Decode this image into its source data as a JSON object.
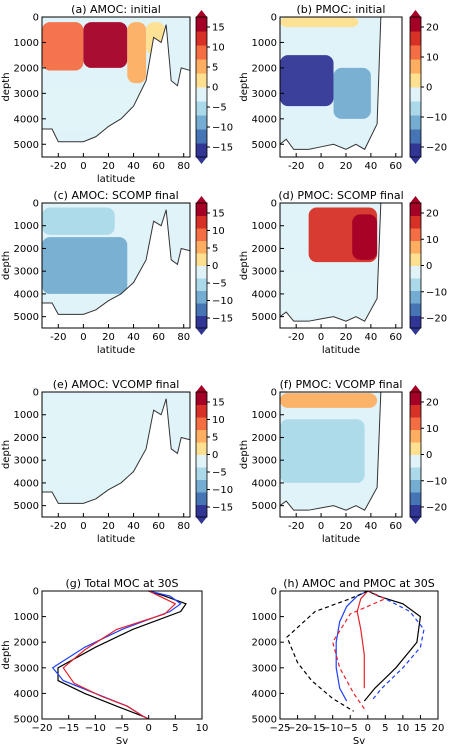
{
  "colors": {
    "scale": [
      "#313695",
      "#4575b4",
      "#74add1",
      "#abd9e9",
      "#e0f3f8",
      "#fee090",
      "#fdae61",
      "#f46d43",
      "#d73027",
      "#a50026"
    ],
    "amoc": "#000000",
    "pmoc": "#1f3fff",
    "sum_red": "#e8212a",
    "topography": "#ffffff"
  },
  "chart_data": [
    {
      "id": "a",
      "type": "heatmap",
      "title": "(a) AMOC: initial",
      "xlabel": "latitude",
      "ylabel": "depth",
      "xlim": [
        -33,
        85
      ],
      "ylim": [
        5500,
        0
      ],
      "y_inverted": true,
      "xticks": [
        "-20",
        "0",
        "20",
        "40",
        "60",
        "80"
      ],
      "yticks": [
        "0",
        "1000",
        "2000",
        "3000",
        "4000",
        "5000"
      ],
      "colorbar_ticks": [
        "15",
        "10",
        "5",
        "0",
        "−5",
        "−10",
        "−15"
      ],
      "colorbar_range": [
        -18,
        18
      ],
      "field_cells": [
        {
          "lat": [
            -33,
            0
          ],
          "depth": [
            200,
            2100
          ],
          "value": 10
        },
        {
          "lat": [
            0,
            35
          ],
          "depth": [
            200,
            2000
          ],
          "value": 15
        },
        {
          "lat": [
            35,
            50
          ],
          "depth": [
            200,
            2600
          ],
          "value": 4
        },
        {
          "lat": [
            50,
            65
          ],
          "depth": [
            200,
            1500
          ],
          "value": 2
        },
        {
          "lat": [
            -33,
            45
          ],
          "depth": [
            2800,
            4500
          ],
          "value": -3
        }
      ]
    },
    {
      "id": "b",
      "type": "heatmap",
      "title": "(b) PMOC: initial",
      "xlabel": "",
      "ylabel": "depth",
      "xlim": [
        -33,
        65
      ],
      "ylim": [
        5500,
        0
      ],
      "y_inverted": true,
      "xticks": [
        "-20",
        "0",
        "20",
        "40",
        "60"
      ],
      "yticks": [
        "0",
        "1000",
        "2000",
        "3000",
        "4000",
        "5000"
      ],
      "colorbar_ticks": [
        "20",
        "10",
        "0",
        "−10",
        "−20"
      ],
      "colorbar_range": [
        -24,
        24
      ],
      "field_cells": [
        {
          "lat": [
            -33,
            30
          ],
          "depth": [
            0,
            400
          ],
          "value": 2
        },
        {
          "lat": [
            -33,
            10
          ],
          "depth": [
            1500,
            3500
          ],
          "value": -20
        },
        {
          "lat": [
            10,
            40
          ],
          "depth": [
            2000,
            4000
          ],
          "value": -10
        }
      ]
    },
    {
      "id": "c",
      "type": "heatmap",
      "title": "(c) AMOC: SCOMP final",
      "xlabel": "latitude",
      "ylabel": "depth",
      "xlim": [
        -33,
        85
      ],
      "ylim": [
        5500,
        0
      ],
      "y_inverted": true,
      "xticks": [
        "-20",
        "0",
        "20",
        "40",
        "60",
        "80"
      ],
      "yticks": [
        "0",
        "1000",
        "2000",
        "3000",
        "4000",
        "5000"
      ],
      "colorbar_ticks": [
        "15",
        "10",
        "5",
        "0",
        "−5",
        "−10",
        "−15"
      ],
      "colorbar_range": [
        -18,
        18
      ],
      "field_cells": [
        {
          "lat": [
            -33,
            35
          ],
          "depth": [
            1500,
            4000
          ],
          "value": -8
        },
        {
          "lat": [
            -33,
            25
          ],
          "depth": [
            200,
            1400
          ],
          "value": -4
        }
      ]
    },
    {
      "id": "d",
      "type": "heatmap",
      "title": "(d) PMOC: SCOMP final",
      "xlabel": "latitude",
      "ylabel": "depth",
      "xlim": [
        -33,
        65
      ],
      "ylim": [
        5500,
        0
      ],
      "y_inverted": true,
      "xticks": [
        "-20",
        "0",
        "20",
        "40",
        "60"
      ],
      "yticks": [
        "0",
        "1000",
        "2000",
        "3000",
        "4000",
        "5000"
      ],
      "colorbar_ticks": [
        "20",
        "10",
        "0",
        "−10",
        "−20"
      ],
      "colorbar_range": [
        -24,
        24
      ],
      "field_cells": [
        {
          "lat": [
            -10,
            45
          ],
          "depth": [
            200,
            2600
          ],
          "value": 16
        },
        {
          "lat": [
            25,
            45
          ],
          "depth": [
            500,
            2500
          ],
          "value": 22
        },
        {
          "lat": [
            -33,
            0
          ],
          "depth": [
            3000,
            5000
          ],
          "value": -4
        }
      ]
    },
    {
      "id": "e",
      "type": "heatmap",
      "title": "(e) AMOC: VCOMP final",
      "xlabel": "latitude",
      "ylabel": "depth",
      "xlim": [
        -33,
        85
      ],
      "ylim": [
        5500,
        0
      ],
      "y_inverted": true,
      "xticks": [
        "-20",
        "0",
        "20",
        "40",
        "60",
        "80"
      ],
      "yticks": [
        "0",
        "1000",
        "2000",
        "3000",
        "4000",
        "5000"
      ],
      "colorbar_ticks": [
        "15",
        "10",
        "5",
        "0",
        "−5",
        "−10",
        "−15"
      ],
      "colorbar_range": [
        -18,
        18
      ],
      "field_cells": [
        {
          "lat": [
            -33,
            60
          ],
          "depth": [
            200,
            4500
          ],
          "value": -2
        }
      ]
    },
    {
      "id": "f",
      "type": "heatmap",
      "title": "(f) PMOC: VCOMP final",
      "xlabel": "latitude",
      "ylabel": "depth",
      "xlim": [
        -33,
        65
      ],
      "ylim": [
        5500,
        0
      ],
      "y_inverted": true,
      "xticks": [
        "-20",
        "0",
        "20",
        "40",
        "60"
      ],
      "yticks": [
        "0",
        "1000",
        "2000",
        "3000",
        "4000",
        "5000"
      ],
      "colorbar_ticks": [
        "20",
        "10",
        "0",
        "−10",
        "−20"
      ],
      "colorbar_range": [
        -24,
        24
      ],
      "field_cells": [
        {
          "lat": [
            -33,
            45
          ],
          "depth": [
            50,
            700
          ],
          "value": 8
        },
        {
          "lat": [
            -33,
            35
          ],
          "depth": [
            1200,
            4000
          ],
          "value": -8
        }
      ]
    },
    {
      "id": "g",
      "type": "line",
      "title": "(g) Total MOC at 30S",
      "xlabel": "Sv",
      "ylabel": "depth",
      "xlim": [
        -20,
        10
      ],
      "ylim": [
        5000,
        0
      ],
      "y_inverted": true,
      "xticks": [
        "−20",
        "−15",
        "−10",
        "−5",
        "0",
        "5",
        "10"
      ],
      "yticks": [
        "0",
        "1000",
        "2000",
        "3000",
        "4000",
        "5000"
      ],
      "series": [
        {
          "color": "#000000",
          "dash": "solid",
          "x": [
            0,
            3,
            7,
            6,
            -3,
            -10,
            -17,
            -17,
            -12,
            -6,
            -1,
            0
          ],
          "y": [
            0,
            200,
            500,
            800,
            1500,
            2200,
            3000,
            3500,
            4000,
            4500,
            4900,
            5000
          ]
        },
        {
          "color": "#1f3fff",
          "dash": "solid",
          "x": [
            0,
            4,
            6,
            4,
            -5,
            -12,
            -18,
            -16,
            -10,
            -4,
            -1,
            0
          ],
          "y": [
            0,
            200,
            500,
            800,
            1500,
            2200,
            3000,
            3500,
            4000,
            4500,
            4900,
            5000
          ]
        },
        {
          "color": "#e8212a",
          "dash": "solid",
          "x": [
            0,
            2,
            5,
            3,
            -6,
            -12,
            -16,
            -14,
            -9,
            -4,
            -1,
            0
          ],
          "y": [
            0,
            200,
            500,
            900,
            1500,
            2300,
            3000,
            3600,
            4100,
            4500,
            4900,
            5000
          ]
        }
      ]
    },
    {
      "id": "h",
      "type": "line",
      "title": "(h) AMOC and PMOC at 30S",
      "xlabel": "Sv",
      "ylabel": "",
      "xlim": [
        -25,
        20
      ],
      "ylim": [
        5000,
        0
      ],
      "y_inverted": true,
      "xticks": [
        "−25",
        "−20",
        "−15",
        "−10",
        "−5",
        "0",
        "5",
        "10",
        "15",
        "20"
      ],
      "yticks": [
        "0",
        "1000",
        "2000",
        "3000",
        "4000",
        "5000"
      ],
      "series": [
        {
          "color": "#000000",
          "dash": "solid",
          "x": [
            0,
            3,
            10,
            15,
            14,
            8,
            2,
            -1
          ],
          "y": [
            0,
            200,
            500,
            1000,
            2000,
            3000,
            3800,
            4300
          ]
        },
        {
          "color": "#1f3fff",
          "dash": "solid",
          "x": [
            0,
            -3,
            -6,
            -8,
            -9,
            -9,
            -8,
            -6
          ],
          "y": [
            0,
            200,
            600,
            1200,
            2000,
            3000,
            3800,
            4300
          ]
        },
        {
          "color": "#e8212a",
          "dash": "solid",
          "x": [
            0,
            -2,
            -3,
            -2,
            -1,
            -1
          ],
          "y": [
            0,
            300,
            800,
            1500,
            2500,
            3800
          ]
        },
        {
          "color": "#000000",
          "dash": "dashed",
          "x": [
            0,
            -5,
            -15,
            -23,
            -20,
            -16,
            -10,
            -4
          ],
          "y": [
            0,
            300,
            800,
            1800,
            2800,
            3500,
            4200,
            4700
          ]
        },
        {
          "color": "#1f3fff",
          "dash": "dashed",
          "x": [
            0,
            5,
            12,
            16,
            15,
            10,
            4,
            1
          ],
          "y": [
            0,
            300,
            800,
            1500,
            2200,
            3000,
            3800,
            4300
          ]
        },
        {
          "color": "#e8212a",
          "dash": "dashed",
          "x": [
            0,
            5,
            -5,
            -10,
            -8,
            -4,
            -1
          ],
          "y": [
            0,
            300,
            900,
            2000,
            3000,
            4000,
            4600
          ]
        }
      ]
    }
  ]
}
